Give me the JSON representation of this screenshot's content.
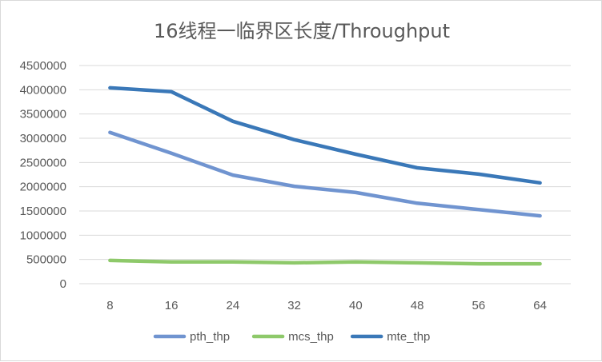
{
  "chart_data": {
    "type": "line",
    "title": "16线程一临界区长度/Throughput",
    "xlabel": "",
    "ylabel": "",
    "categories": [
      "8",
      "16",
      "24",
      "32",
      "40",
      "48",
      "56",
      "64"
    ],
    "ylim": [
      0,
      4500000
    ],
    "yticks": [
      0,
      500000,
      1000000,
      1500000,
      2000000,
      2500000,
      3000000,
      3500000,
      4000000,
      4500000
    ],
    "grid": true,
    "legend": "bottom",
    "series": [
      {
        "name": "pth_thp",
        "color": "#7094d0",
        "values": [
          3120000,
          2690000,
          2240000,
          2010000,
          1880000,
          1660000,
          1530000,
          1400000
        ]
      },
      {
        "name": "mcs_thp",
        "color": "#8ec96a",
        "values": [
          480000,
          450000,
          450000,
          430000,
          450000,
          430000,
          410000,
          410000
        ]
      },
      {
        "name": "mte_thp",
        "color": "#3a78b8",
        "values": [
          4040000,
          3960000,
          3350000,
          2970000,
          2670000,
          2390000,
          2260000,
          2080000
        ]
      }
    ]
  }
}
